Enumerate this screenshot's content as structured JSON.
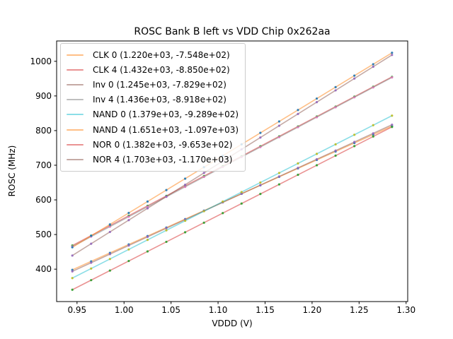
{
  "figure": {
    "background": "#ffffff",
    "text_color": "#000000",
    "spine_color": "#000000"
  },
  "chart_data": {
    "type": "line",
    "title": "ROSC Bank B left vs VDD Chip 0x262aa",
    "xlabel": "VDDD (V)",
    "ylabel": "ROSC (MHz)",
    "xlim": [
      0.9283,
      1.3017
    ],
    "ylim": [
      306.5,
      1058.7
    ],
    "grid": false,
    "legend_position": "upper left",
    "x_ticks": [
      0.95,
      1.0,
      1.05,
      1.1,
      1.15,
      1.2,
      1.25,
      1.3
    ],
    "x_tick_labels": [
      "0.95",
      "1.00",
      "1.05",
      "1.10",
      "1.15",
      "1.20",
      "1.25",
      "1.30"
    ],
    "y_ticks": [
      400,
      500,
      600,
      700,
      800,
      900,
      1000
    ],
    "y_tick_labels": [
      "400",
      "500",
      "600",
      "700",
      "800",
      "900",
      "1000"
    ],
    "x_points": [
      0.945,
      0.965,
      0.985,
      1.005,
      1.025,
      1.045,
      1.065,
      1.085,
      1.105,
      1.125,
      1.145,
      1.165,
      1.185,
      1.205,
      1.225,
      1.245,
      1.265,
      1.285
    ],
    "series": [
      {
        "name": "CLK 0",
        "label": "CLK 0 (1.220e+03, -7.548e+02)",
        "slope": 1220.0,
        "intercept": -754.8,
        "line_color": "#ff7f0e",
        "line_alpha": 0.5,
        "marker_color": "#1f77b4"
      },
      {
        "name": "CLK 4",
        "label": "CLK 4 (1.432e+03, -8.850e+02)",
        "slope": 1432.0,
        "intercept": -885.0,
        "line_color": "#d62728",
        "line_alpha": 0.5,
        "marker_color": "#2ca02c"
      },
      {
        "name": "Inv 0",
        "label": "Inv 0 (1.245e+03, -7.829e+02)",
        "slope": 1245.0,
        "intercept": -782.9,
        "line_color": "#8c564b",
        "line_alpha": 0.5,
        "marker_color": "#9467bd"
      },
      {
        "name": "Inv 4",
        "label": "Inv 4 (1.436e+03, -8.918e+02)",
        "slope": 1436.0,
        "intercept": -891.8,
        "line_color": "#7f7f7f",
        "line_alpha": 0.5,
        "marker_color": "#e377c2"
      },
      {
        "name": "NAND 0",
        "label": "NAND 0 (1.379e+03, -9.289e+02)",
        "slope": 1379.0,
        "intercept": -928.9,
        "line_color": "#17becf",
        "line_alpha": 0.5,
        "marker_color": "#bcbd22"
      },
      {
        "name": "NAND 4",
        "label": "NAND 4 (1.651e+03, -1.097e+03)",
        "slope": 1651.0,
        "intercept": -1097.0,
        "line_color": "#ff7f0e",
        "line_alpha": 0.5,
        "marker_color": "#1f77b4"
      },
      {
        "name": "NOR 0",
        "label": "NOR 0 (1.382e+03, -9.653e+02)",
        "slope": 1382.0,
        "intercept": -965.3,
        "line_color": "#d62728",
        "line_alpha": 0.5,
        "marker_color": "#2ca02c"
      },
      {
        "name": "NOR 4",
        "label": "NOR 4 (1.703e+03, -1.170e+03)",
        "slope": 1703.0,
        "intercept": -1170.0,
        "line_color": "#8c564b",
        "line_alpha": 0.5,
        "marker_color": "#9467bd"
      }
    ]
  }
}
